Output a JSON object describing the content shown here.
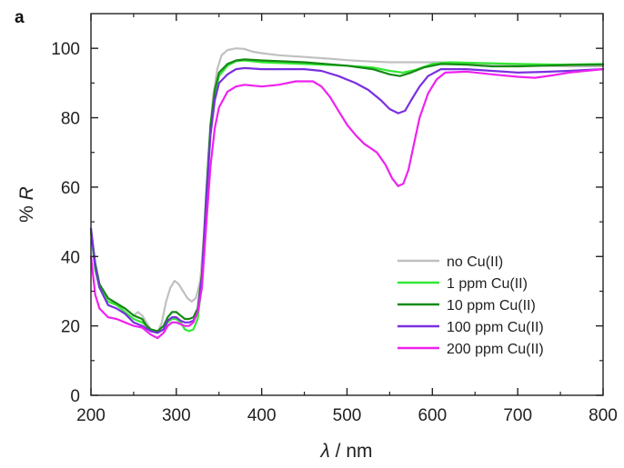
{
  "chart_data": {
    "type": "line",
    "panel_label": "a",
    "xlabel_italic": "λ",
    "xlabel_rest": " / nm",
    "ylabel_prefix": "% ",
    "ylabel_italic": "R",
    "xlim": [
      200,
      800
    ],
    "ylim": [
      0,
      110
    ],
    "xticks": [
      200,
      300,
      400,
      500,
      600,
      700,
      800
    ],
    "yticks": [
      0,
      20,
      40,
      60,
      80,
      100
    ],
    "grid": false,
    "legend_position": "lower-right",
    "series": [
      {
        "name": "no Cu(II)",
        "color": "#c0c0c0",
        "points": [
          [
            200,
            47
          ],
          [
            205,
            38
          ],
          [
            210,
            32
          ],
          [
            220,
            28
          ],
          [
            230,
            26
          ],
          [
            240,
            25
          ],
          [
            250,
            23
          ],
          [
            255,
            24
          ],
          [
            260,
            23
          ],
          [
            265,
            21
          ],
          [
            270,
            19
          ],
          [
            278,
            18
          ],
          [
            283,
            21
          ],
          [
            288,
            27
          ],
          [
            293,
            31
          ],
          [
            298,
            33
          ],
          [
            303,
            32
          ],
          [
            308,
            30
          ],
          [
            313,
            28
          ],
          [
            318,
            27
          ],
          [
            323,
            28
          ],
          [
            328,
            33
          ],
          [
            333,
            48
          ],
          [
            338,
            70
          ],
          [
            343,
            86
          ],
          [
            348,
            94
          ],
          [
            353,
            98
          ],
          [
            360,
            99.5
          ],
          [
            370,
            100
          ],
          [
            380,
            99.8
          ],
          [
            390,
            99
          ],
          [
            400,
            98.6
          ],
          [
            420,
            98
          ],
          [
            450,
            97.5
          ],
          [
            480,
            97
          ],
          [
            500,
            96.6
          ],
          [
            520,
            96.3
          ],
          [
            550,
            96
          ],
          [
            570,
            96
          ],
          [
            590,
            96
          ],
          [
            610,
            96
          ],
          [
            640,
            95.8
          ],
          [
            670,
            95.5
          ],
          [
            700,
            95.3
          ],
          [
            730,
            95
          ],
          [
            760,
            94.8
          ],
          [
            800,
            94.8
          ]
        ]
      },
      {
        "name": "1 ppm Cu(II)",
        "color": "#33e833",
        "points": [
          [
            200,
            47
          ],
          [
            205,
            36
          ],
          [
            210,
            31
          ],
          [
            220,
            27
          ],
          [
            230,
            26
          ],
          [
            240,
            24
          ],
          [
            250,
            22
          ],
          [
            260,
            21
          ],
          [
            265,
            20
          ],
          [
            270,
            19
          ],
          [
            278,
            18
          ],
          [
            285,
            19
          ],
          [
            290,
            21
          ],
          [
            295,
            22
          ],
          [
            300,
            22
          ],
          [
            305,
            21
          ],
          [
            310,
            19
          ],
          [
            315,
            18.5
          ],
          [
            320,
            19
          ],
          [
            325,
            22
          ],
          [
            330,
            32
          ],
          [
            335,
            55
          ],
          [
            340,
            76
          ],
          [
            345,
            87
          ],
          [
            350,
            92
          ],
          [
            360,
            95
          ],
          [
            370,
            96.3
          ],
          [
            380,
            96.5
          ],
          [
            400,
            96
          ],
          [
            450,
            95.5
          ],
          [
            500,
            95
          ],
          [
            530,
            94.5
          ],
          [
            550,
            93.5
          ],
          [
            565,
            93
          ],
          [
            580,
            93.8
          ],
          [
            600,
            95.5
          ],
          [
            620,
            96
          ],
          [
            650,
            95.8
          ],
          [
            700,
            95.5
          ],
          [
            750,
            95.3
          ],
          [
            800,
            95.5
          ]
        ]
      },
      {
        "name": "10 ppm Cu(II)",
        "color": "#148a14",
        "points": [
          [
            200,
            48
          ],
          [
            205,
            38
          ],
          [
            210,
            32
          ],
          [
            220,
            28
          ],
          [
            230,
            26.5
          ],
          [
            240,
            25
          ],
          [
            250,
            23
          ],
          [
            260,
            22
          ],
          [
            265,
            20
          ],
          [
            270,
            19
          ],
          [
            278,
            18.5
          ],
          [
            285,
            20
          ],
          [
            290,
            22.5
          ],
          [
            295,
            24
          ],
          [
            300,
            24
          ],
          [
            305,
            23
          ],
          [
            310,
            22
          ],
          [
            315,
            22
          ],
          [
            320,
            22.5
          ],
          [
            325,
            25
          ],
          [
            330,
            35
          ],
          [
            335,
            58
          ],
          [
            340,
            78
          ],
          [
            345,
            88
          ],
          [
            350,
            93
          ],
          [
            360,
            95.5
          ],
          [
            370,
            96.5
          ],
          [
            380,
            96.8
          ],
          [
            400,
            96.5
          ],
          [
            450,
            96
          ],
          [
            500,
            95
          ],
          [
            530,
            94
          ],
          [
            550,
            92.5
          ],
          [
            562,
            92
          ],
          [
            575,
            93
          ],
          [
            590,
            94.5
          ],
          [
            610,
            95.5
          ],
          [
            640,
            95.3
          ],
          [
            670,
            94.8
          ],
          [
            700,
            94.8
          ],
          [
            730,
            95
          ],
          [
            760,
            95.2
          ],
          [
            800,
            95.3
          ]
        ]
      },
      {
        "name": "100 ppm Cu(II)",
        "color": "#7a2fe0",
        "points": [
          [
            200,
            48
          ],
          [
            205,
            37
          ],
          [
            210,
            31
          ],
          [
            220,
            26
          ],
          [
            230,
            25
          ],
          [
            240,
            23.5
          ],
          [
            250,
            21
          ],
          [
            260,
            20
          ],
          [
            270,
            18.5
          ],
          [
            278,
            18
          ],
          [
            285,
            19
          ],
          [
            290,
            21.5
          ],
          [
            295,
            22.5
          ],
          [
            300,
            22.5
          ],
          [
            305,
            21.5
          ],
          [
            310,
            21
          ],
          [
            315,
            21
          ],
          [
            320,
            21.5
          ],
          [
            325,
            24
          ],
          [
            330,
            34
          ],
          [
            335,
            56
          ],
          [
            340,
            75
          ],
          [
            345,
            85
          ],
          [
            350,
            90
          ],
          [
            360,
            92.5
          ],
          [
            370,
            94
          ],
          [
            380,
            94.3
          ],
          [
            400,
            94
          ],
          [
            420,
            94
          ],
          [
            450,
            94
          ],
          [
            470,
            93.5
          ],
          [
            490,
            92
          ],
          [
            510,
            90
          ],
          [
            525,
            88
          ],
          [
            540,
            85
          ],
          [
            550,
            82.5
          ],
          [
            560,
            81.3
          ],
          [
            568,
            82
          ],
          [
            575,
            85
          ],
          [
            585,
            89
          ],
          [
            595,
            92
          ],
          [
            610,
            94
          ],
          [
            640,
            94
          ],
          [
            670,
            93.5
          ],
          [
            700,
            93
          ],
          [
            730,
            93.2
          ],
          [
            760,
            93.5
          ],
          [
            800,
            94
          ]
        ]
      },
      {
        "name": "200 ppm Cu(II)",
        "color": "#ee22ee",
        "points": [
          [
            200,
            40
          ],
          [
            205,
            29
          ],
          [
            210,
            25
          ],
          [
            220,
            22.5
          ],
          [
            230,
            22
          ],
          [
            240,
            21
          ],
          [
            250,
            20
          ],
          [
            260,
            19.5
          ],
          [
            270,
            17.5
          ],
          [
            278,
            16.5
          ],
          [
            285,
            18
          ],
          [
            290,
            20
          ],
          [
            295,
            21
          ],
          [
            300,
            21
          ],
          [
            305,
            20.5
          ],
          [
            310,
            20
          ],
          [
            315,
            20
          ],
          [
            320,
            21
          ],
          [
            325,
            24
          ],
          [
            330,
            31
          ],
          [
            335,
            49
          ],
          [
            340,
            66
          ],
          [
            345,
            77
          ],
          [
            350,
            83
          ],
          [
            360,
            87.5
          ],
          [
            370,
            89
          ],
          [
            380,
            89.5
          ],
          [
            400,
            89
          ],
          [
            420,
            89.5
          ],
          [
            440,
            90.5
          ],
          [
            460,
            90.5
          ],
          [
            470,
            89
          ],
          [
            480,
            86
          ],
          [
            490,
            82
          ],
          [
            500,
            78
          ],
          [
            510,
            75
          ],
          [
            520,
            72.5
          ],
          [
            535,
            70
          ],
          [
            545,
            66.5
          ],
          [
            553,
            62.5
          ],
          [
            560,
            60.3
          ],
          [
            566,
            61
          ],
          [
            572,
            65
          ],
          [
            578,
            72
          ],
          [
            585,
            80
          ],
          [
            595,
            87
          ],
          [
            605,
            91
          ],
          [
            615,
            93
          ],
          [
            640,
            93.3
          ],
          [
            670,
            92.5
          ],
          [
            700,
            91.8
          ],
          [
            720,
            91.5
          ],
          [
            740,
            92.2
          ],
          [
            760,
            93
          ],
          [
            800,
            94
          ]
        ]
      }
    ]
  }
}
